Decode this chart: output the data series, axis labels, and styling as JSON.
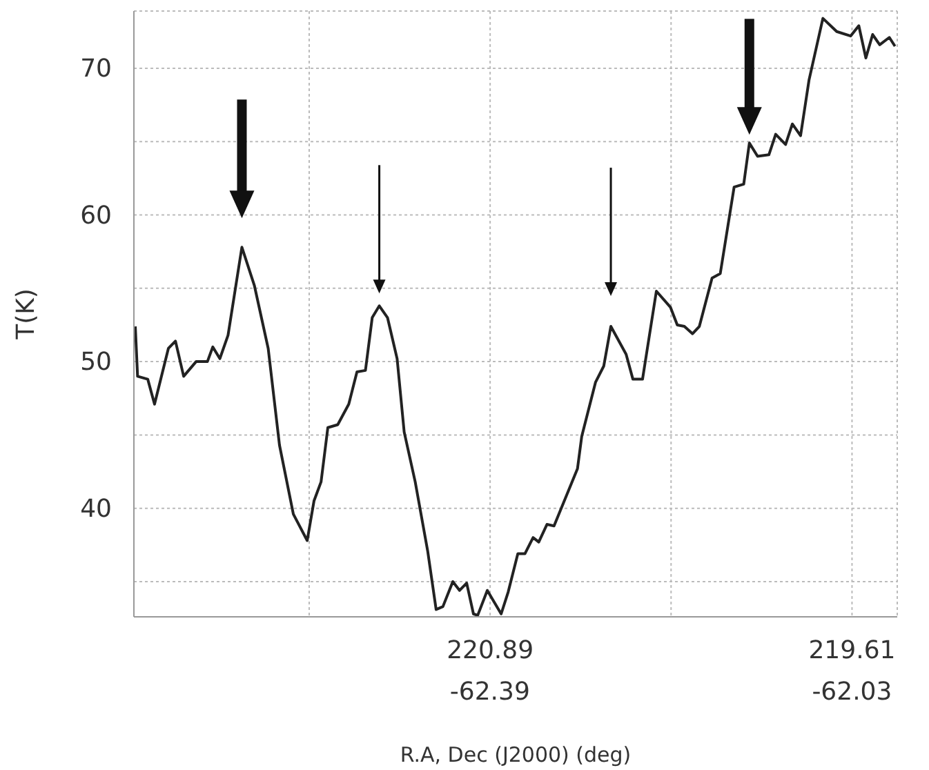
{
  "chart_data": {
    "type": "line",
    "xlabel": "R.A, Dec (J2000) (deg)",
    "ylabel": "T(K)",
    "x": [
      222.145,
      222.137,
      222.101,
      222.077,
      222.028,
      222.003,
      221.974,
      221.93,
      221.89,
      221.871,
      221.846,
      221.817,
      221.768,
      221.724,
      221.675,
      221.635,
      221.586,
      221.537,
      221.513,
      221.488,
      221.464,
      221.429,
      221.39,
      221.361,
      221.331,
      221.307,
      221.282,
      221.253,
      221.219,
      221.194,
      221.155,
      221.111,
      221.081,
      221.057,
      221.022,
      220.998,
      220.973,
      220.949,
      220.934,
      220.9,
      220.851,
      220.826,
      220.792,
      220.767,
      220.738,
      220.718,
      220.689,
      220.664,
      220.581,
      220.566,
      220.517,
      220.488,
      220.463,
      220.409,
      220.385,
      220.351,
      220.302,
      220.252,
      220.228,
      220.203,
      220.174,
      220.15,
      220.105,
      220.076,
      220.027,
      219.993,
      219.973,
      219.944,
      219.904,
      219.88,
      219.845,
      219.821,
      219.792,
      219.762,
      219.713,
      219.664,
      219.615,
      219.586,
      219.561,
      219.537,
      219.512,
      219.478,
      219.458
    ],
    "values": [
      52.4,
      49.0,
      48.8,
      47.1,
      50.9,
      51.4,
      49.0,
      50.0,
      50.0,
      51.0,
      50.2,
      51.8,
      57.8,
      55.2,
      50.9,
      44.3,
      39.6,
      37.8,
      40.5,
      41.8,
      45.5,
      45.7,
      47.1,
      49.3,
      49.4,
      53.0,
      53.8,
      53.0,
      50.2,
      45.2,
      41.8,
      37.1,
      33.1,
      33.3,
      35.0,
      34.4,
      34.9,
      32.8,
      32.7,
      34.4,
      32.8,
      34.3,
      36.9,
      36.9,
      38.0,
      37.7,
      38.9,
      38.8,
      42.7,
      44.9,
      48.6,
      49.7,
      52.4,
      50.5,
      48.8,
      48.8,
      54.8,
      53.7,
      52.5,
      52.4,
      51.9,
      52.4,
      55.7,
      56.0,
      61.9,
      62.1,
      64.9,
      64.0,
      64.1,
      65.5,
      64.8,
      66.2,
      65.4,
      69.2,
      73.4,
      72.5,
      72.2,
      72.9,
      70.7,
      72.3,
      71.6,
      72.1,
      71.5
    ],
    "color": "#222222",
    "xlim": [
      222.15,
      219.45
    ],
    "xticks": [
      {
        "value": 221.53,
        "label": null
      },
      220.89,
      {
        "value": 220.25,
        "label": null
      },
      219.61
    ],
    "x2lim": [
      -62.744,
      -61.985
    ],
    "x2ticks": [
      -62.39,
      -62.03
    ],
    "ylim": [
      32.6,
      73.9
    ],
    "yticks": [
      {
        "value": 35,
        "label": null
      },
      40,
      {
        "value": 45,
        "label": null
      },
      50,
      {
        "value": 55,
        "label": null
      },
      60,
      {
        "value": 65,
        "label": null
      },
      70
    ],
    "grid": true,
    "marker": "none",
    "line_style": "solid"
  }
}
